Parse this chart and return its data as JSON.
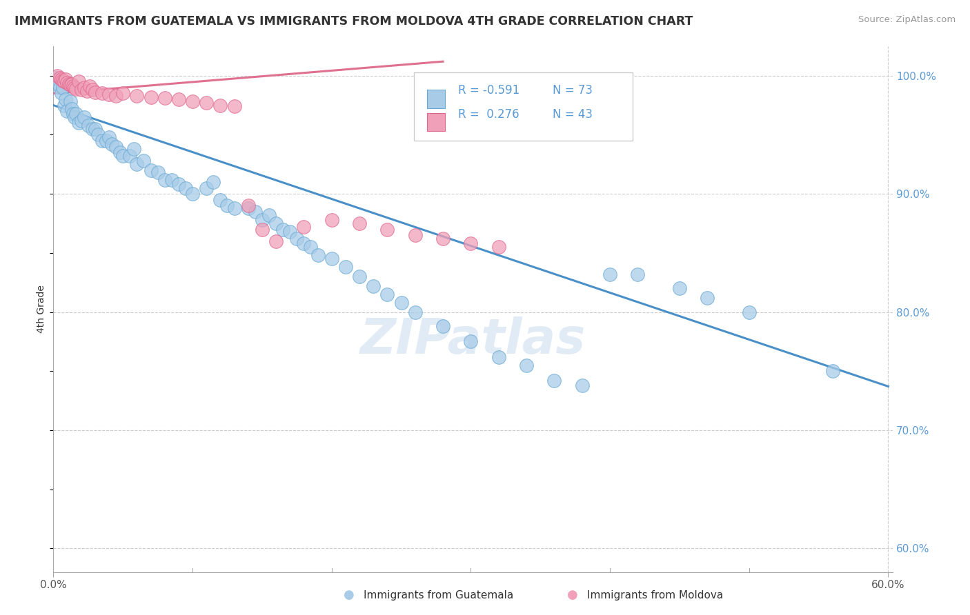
{
  "title": "IMMIGRANTS FROM GUATEMALA VS IMMIGRANTS FROM MOLDOVA 4TH GRADE CORRELATION CHART",
  "source": "Source: ZipAtlas.com",
  "ylabel": "4th Grade",
  "color_blue": "#A8CCE8",
  "color_blue_edge": "#6AAAD4",
  "color_pink": "#F0A0B8",
  "color_pink_edge": "#E06890",
  "color_line_blue": "#4A90C8",
  "color_line_pink": "#E07090",
  "watermark": "ZIPatlas",
  "ytick_color": "#5B9BD5",
  "title_color": "#333333",
  "source_color": "#999999",
  "legend_text_color": "#5B9BD5",
  "x_min": 0.0,
  "x_max": 0.6,
  "y_min": 0.58,
  "y_max": 1.025,
  "ytick_values": [
    0.6,
    0.7,
    0.8,
    0.9,
    1.0
  ],
  "ytick_labels": [
    "60.0%",
    "70.0%",
    "80.0%",
    "90.0%",
    "100.0%"
  ],
  "xtick_values": [
    0.0,
    0.6
  ],
  "xtick_labels": [
    "0.0%",
    "60.0%"
  ],
  "blue_line_x": [
    0.0,
    0.6
  ],
  "blue_line_y": [
    0.975,
    0.737
  ],
  "pink_line_x": [
    0.0,
    0.28
  ],
  "pink_line_y": [
    0.985,
    1.012
  ],
  "guat_x": [
    0.002,
    0.004,
    0.005,
    0.006,
    0.007,
    0.008,
    0.009,
    0.01,
    0.012,
    0.013,
    0.014,
    0.015,
    0.016,
    0.018,
    0.02,
    0.022,
    0.025,
    0.028,
    0.03,
    0.032,
    0.035,
    0.038,
    0.04,
    0.042,
    0.045,
    0.048,
    0.05,
    0.055,
    0.058,
    0.06,
    0.065,
    0.07,
    0.075,
    0.08,
    0.085,
    0.09,
    0.095,
    0.1,
    0.11,
    0.115,
    0.12,
    0.125,
    0.13,
    0.14,
    0.145,
    0.15,
    0.155,
    0.16,
    0.165,
    0.17,
    0.175,
    0.18,
    0.185,
    0.19,
    0.2,
    0.21,
    0.22,
    0.23,
    0.24,
    0.25,
    0.26,
    0.28,
    0.3,
    0.32,
    0.34,
    0.36,
    0.38,
    0.4,
    0.42,
    0.45,
    0.47,
    0.5,
    0.56
  ],
  "guat_y": [
    0.998,
    0.993,
    0.99,
    0.985,
    0.99,
    0.975,
    0.98,
    0.97,
    0.978,
    0.972,
    0.968,
    0.965,
    0.968,
    0.96,
    0.962,
    0.965,
    0.958,
    0.955,
    0.955,
    0.95,
    0.945,
    0.945,
    0.948,
    0.942,
    0.94,
    0.935,
    0.932,
    0.932,
    0.938,
    0.925,
    0.928,
    0.92,
    0.918,
    0.912,
    0.912,
    0.908,
    0.905,
    0.9,
    0.905,
    0.91,
    0.895,
    0.89,
    0.888,
    0.888,
    0.885,
    0.878,
    0.882,
    0.875,
    0.87,
    0.868,
    0.862,
    0.858,
    0.855,
    0.848,
    0.845,
    0.838,
    0.83,
    0.822,
    0.815,
    0.808,
    0.8,
    0.788,
    0.775,
    0.762,
    0.755,
    0.742,
    0.738,
    0.832,
    0.832,
    0.82,
    0.812,
    0.8,
    0.75
  ],
  "mold_x": [
    0.003,
    0.005,
    0.006,
    0.007,
    0.008,
    0.009,
    0.01,
    0.011,
    0.012,
    0.013,
    0.014,
    0.015,
    0.016,
    0.018,
    0.02,
    0.022,
    0.024,
    0.026,
    0.028,
    0.03,
    0.035,
    0.04,
    0.045,
    0.05,
    0.06,
    0.07,
    0.08,
    0.09,
    0.1,
    0.11,
    0.12,
    0.13,
    0.14,
    0.15,
    0.16,
    0.18,
    0.2,
    0.22,
    0.24,
    0.26,
    0.28,
    0.3,
    0.32
  ],
  "mold_y": [
    1.0,
    0.998,
    0.997,
    0.996,
    0.995,
    0.997,
    0.994,
    0.993,
    0.992,
    0.993,
    0.991,
    0.99,
    0.989,
    0.995,
    0.988,
    0.99,
    0.987,
    0.991,
    0.988,
    0.986,
    0.985,
    0.984,
    0.983,
    0.985,
    0.983,
    0.982,
    0.981,
    0.98,
    0.978,
    0.977,
    0.975,
    0.974,
    0.89,
    0.87,
    0.86,
    0.872,
    0.878,
    0.875,
    0.87,
    0.865,
    0.862,
    0.858,
    0.855
  ]
}
